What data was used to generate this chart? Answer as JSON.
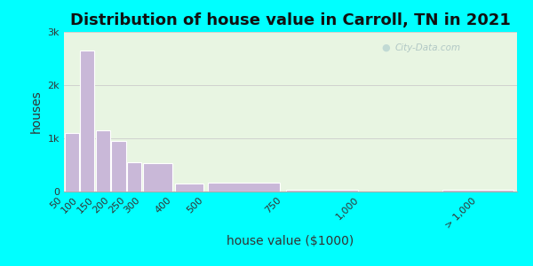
{
  "title": "Distribution of house value in Carroll, TN in 2021",
  "xlabel": "house value ($1000)",
  "ylabel": "houses",
  "bar_labels": [
    "50",
    "100",
    "150",
    "200",
    "250",
    "300",
    "400",
    "500",
    "750",
    "1,000",
    "> 1,000"
  ],
  "bar_left_edges": [
    50,
    100,
    150,
    200,
    250,
    300,
    400,
    500,
    750,
    1000,
    1250
  ],
  "bar_widths": [
    50,
    50,
    50,
    50,
    50,
    100,
    100,
    250,
    250,
    250,
    250
  ],
  "bar_values": [
    1100,
    2650,
    1150,
    950,
    550,
    530,
    150,
    175,
    30,
    5,
    30
  ],
  "bar_color": "#c9b8d8",
  "bar_edge_color": "#ffffff",
  "background_outer": "#00ffff",
  "background_inner": "#e8f5e2",
  "ytick_labels": [
    "0",
    "1k",
    "2k",
    "3k"
  ],
  "ytick_values": [
    0,
    1000,
    2000,
    3000
  ],
  "ylim": [
    0,
    3000
  ],
  "xlim": [
    50,
    1500
  ],
  "xtick_positions": [
    50,
    100,
    150,
    200,
    250,
    300,
    400,
    500,
    750,
    1000,
    1375
  ],
  "xtick_labels": [
    "50",
    "100",
    "150",
    "200",
    "250",
    "300",
    "400",
    "500",
    "750",
    "1,000",
    "> 1,000"
  ],
  "title_fontsize": 13,
  "axis_label_fontsize": 10,
  "tick_fontsize": 8,
  "watermark_text": "City-Data.com"
}
